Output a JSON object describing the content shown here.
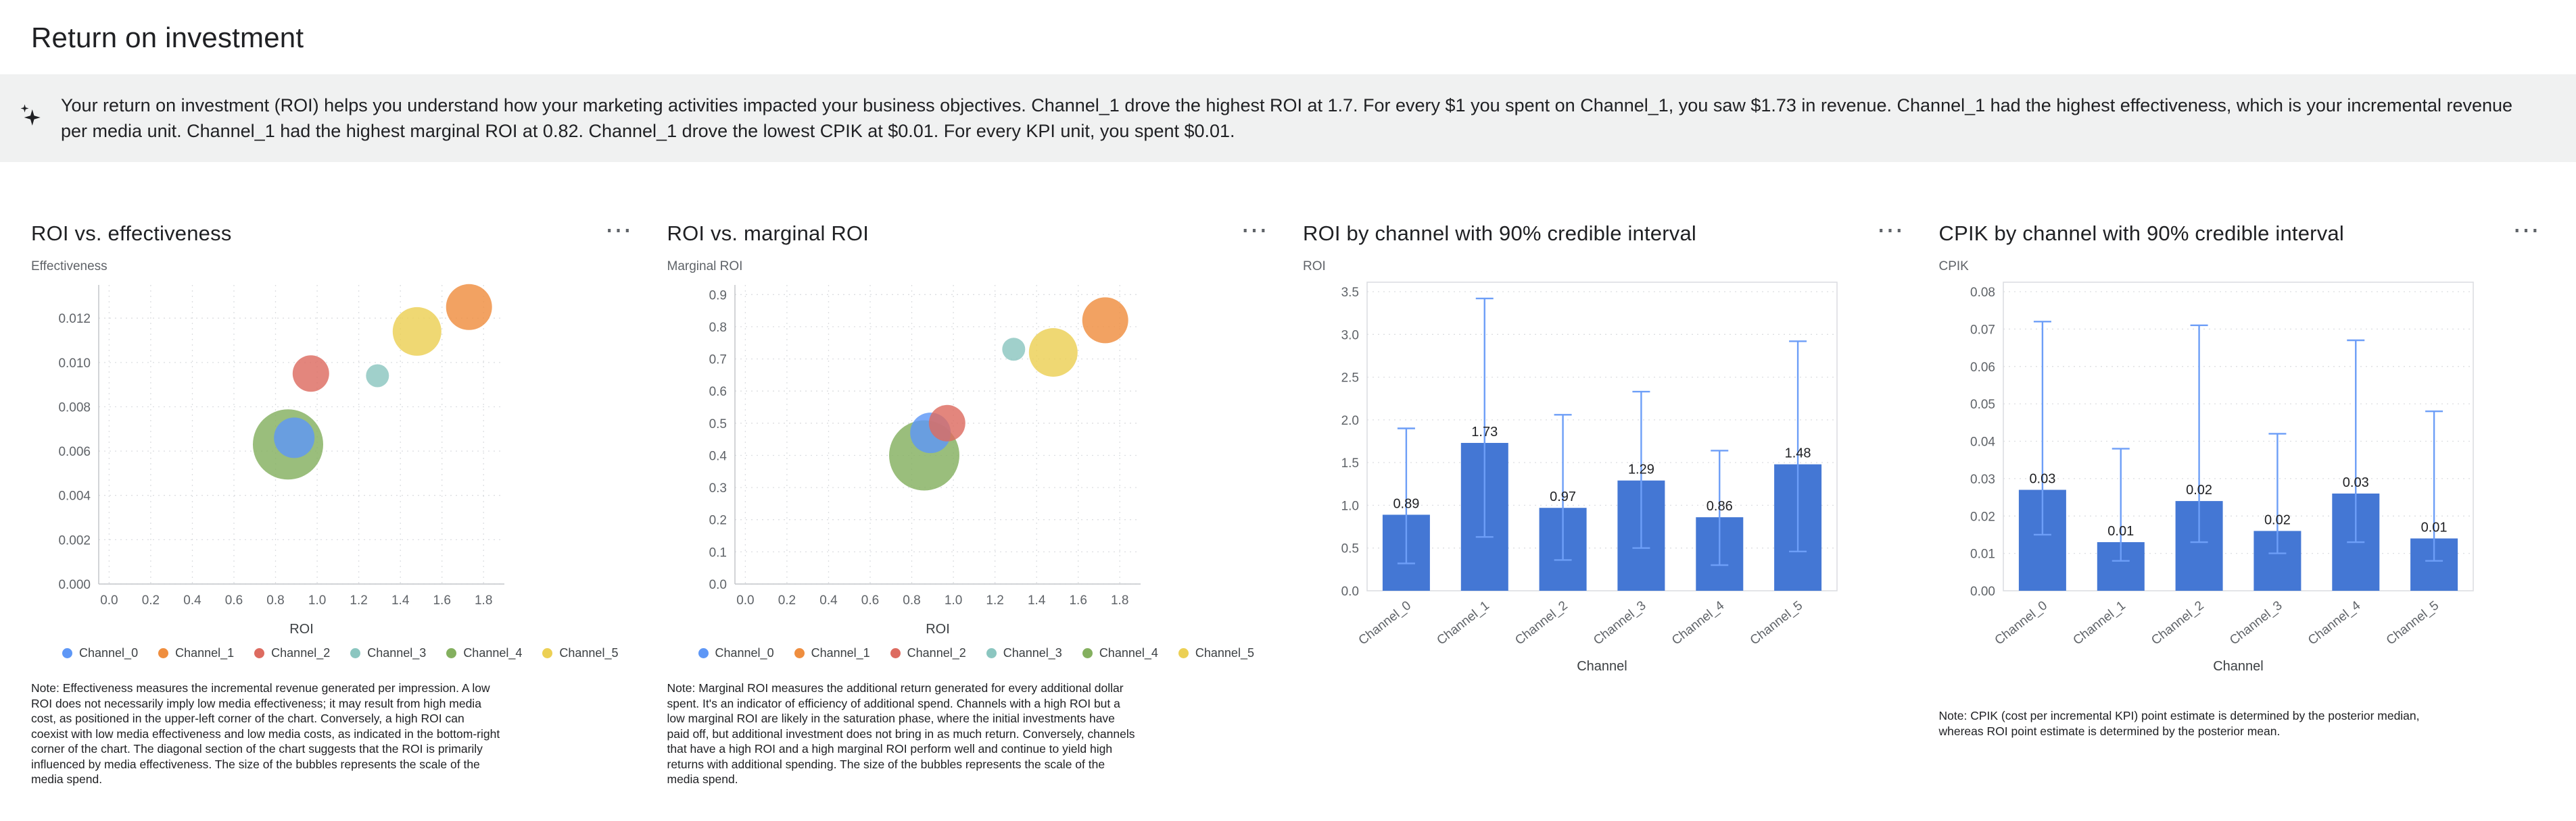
{
  "page": {
    "title": "Return on investment"
  },
  "icons": {
    "more_options": "⋯"
  },
  "insight_banner": {
    "text": "Your return on investment (ROI) helps you understand how your marketing activities impacted your business objectives. Channel_1 drove the highest ROI at 1.7. For every $1 you spent on Channel_1, you saw $1.73 in revenue. Channel_1 had the highest effectiveness, which is your incremental revenue per media unit. Channel_1 had the highest marginal ROI at 0.82. Channel_1 drove the lowest CPIK at $0.01. For every KPI unit, you spent $0.01."
  },
  "channels": [
    "Channel_0",
    "Channel_1",
    "Channel_2",
    "Channel_3",
    "Channel_4",
    "Channel_5"
  ],
  "colors": {
    "channel_palette": [
      "#5e97f6",
      "#ef8e3f",
      "#dd6b60",
      "#8bc6c0",
      "#84b05f",
      "#ecd054"
    ],
    "bar": "#4477d4",
    "ci": "#6d9ef7",
    "banner_bg": "#f0f1f1"
  },
  "chart_data": [
    {
      "type": "scatter",
      "title": "ROI vs. effectiveness",
      "xlabel": "ROI",
      "ylabel": "Effectiveness",
      "xlim": [
        -0.05,
        1.9
      ],
      "ylim": [
        0,
        0.0135
      ],
      "x_ticks": [
        0,
        0.2,
        0.4,
        0.6,
        0.8,
        1.0,
        1.2,
        1.4,
        1.6,
        1.8
      ],
      "x_tick_labels": [
        "0.0",
        "0.2",
        "0.4",
        "0.6",
        "0.8",
        "1.0",
        "1.2",
        "1.4",
        "1.6",
        "1.8"
      ],
      "y_ticks": [
        0,
        0.002,
        0.004,
        0.006,
        0.008,
        0.01,
        0.012
      ],
      "y_tick_labels": [
        "0.000",
        "0.002",
        "0.004",
        "0.006",
        "0.008",
        "0.010",
        "0.012"
      ],
      "series": [
        {
          "name": "Channel_0",
          "x": 0.89,
          "y": 0.0066,
          "size": 30
        },
        {
          "name": "Channel_1",
          "x": 1.73,
          "y": 0.0125,
          "size": 34
        },
        {
          "name": "Channel_2",
          "x": 0.97,
          "y": 0.0095,
          "size": 27
        },
        {
          "name": "Channel_3",
          "x": 1.29,
          "y": 0.0094,
          "size": 17
        },
        {
          "name": "Channel_4",
          "x": 0.86,
          "y": 0.0063,
          "size": 52
        },
        {
          "name": "Channel_5",
          "x": 1.48,
          "y": 0.0114,
          "size": 36
        }
      ],
      "note": "Note: Effectiveness measures the incremental revenue generated per impression. A low ROI does not necessarily imply low media effectiveness; it may result from high media cost, as positioned in the upper-left corner of the chart. Conversely, a high ROI can coexist with low media effectiveness and low media costs, as indicated in the bottom-right corner of the chart. The diagonal section of the chart suggests that the ROI is primarily influenced by media effectiveness. The size of the bubbles represents the scale of the media spend."
    },
    {
      "type": "scatter",
      "title": "ROI vs. marginal ROI",
      "xlabel": "ROI",
      "ylabel": "Marginal ROI",
      "xlim": [
        -0.05,
        1.9
      ],
      "ylim": [
        0,
        0.93
      ],
      "x_ticks": [
        0,
        0.2,
        0.4,
        0.6,
        0.8,
        1.0,
        1.2,
        1.4,
        1.6,
        1.8
      ],
      "x_tick_labels": [
        "0.0",
        "0.2",
        "0.4",
        "0.6",
        "0.8",
        "1.0",
        "1.2",
        "1.4",
        "1.6",
        "1.8"
      ],
      "y_ticks": [
        0,
        0.1,
        0.2,
        0.3,
        0.4,
        0.5,
        0.6,
        0.7,
        0.8,
        0.9
      ],
      "y_tick_labels": [
        "0.0",
        "0.1",
        "0.2",
        "0.3",
        "0.4",
        "0.5",
        "0.6",
        "0.7",
        "0.8",
        "0.9"
      ],
      "series": [
        {
          "name": "Channel_0",
          "x": 0.89,
          "y": 0.47,
          "size": 30
        },
        {
          "name": "Channel_1",
          "x": 1.73,
          "y": 0.82,
          "size": 34
        },
        {
          "name": "Channel_2",
          "x": 0.97,
          "y": 0.5,
          "size": 27
        },
        {
          "name": "Channel_3",
          "x": 1.29,
          "y": 0.73,
          "size": 17
        },
        {
          "name": "Channel_4",
          "x": 0.86,
          "y": 0.4,
          "size": 52
        },
        {
          "name": "Channel_5",
          "x": 1.48,
          "y": 0.72,
          "size": 36
        }
      ],
      "note": "Note: Marginal ROI measures the additional return generated for every additional dollar spent. It's an indicator of efficiency of additional spend. Channels with a high ROI but a low marginal ROI are likely in the saturation phase, where the initial investments have paid off, but additional investment does not bring in as much return. Conversely, channels that have a high ROI and a high marginal ROI perform well and continue to yield high returns with additional spending. The size of the bubbles represents the scale of the media spend."
    },
    {
      "type": "bar",
      "title": "ROI by channel with 90% credible interval",
      "xlabel": "Channel",
      "ylabel": "ROI",
      "categories": [
        "Channel_0",
        "Channel_1",
        "Channel_2",
        "Channel_3",
        "Channel_4",
        "Channel_5"
      ],
      "values": [
        0.89,
        1.73,
        0.97,
        1.29,
        0.86,
        1.48
      ],
      "labels": [
        "0.89",
        "1.73",
        "0.97",
        "1.29",
        "0.86",
        "1.48"
      ],
      "ci_low": [
        0.32,
        0.63,
        0.36,
        0.5,
        0.3,
        0.46
      ],
      "ci_high": [
        1.9,
        3.42,
        2.06,
        2.33,
        1.64,
        2.92
      ],
      "ylim": [
        0,
        3.5
      ],
      "y_ticks": [
        0,
        0.5,
        1,
        1.5,
        2,
        2.5,
        3,
        3.5
      ],
      "y_tick_labels": [
        "0.0",
        "0.5",
        "1.0",
        "1.5",
        "2.0",
        "2.5",
        "3.0",
        "3.5"
      ]
    },
    {
      "type": "bar",
      "title": "CPIK by channel with 90% credible interval",
      "xlabel": "Channel",
      "ylabel": "CPIK",
      "categories": [
        "Channel_0",
        "Channel_1",
        "Channel_2",
        "Channel_3",
        "Channel_4",
        "Channel_5"
      ],
      "values": [
        0.027,
        0.013,
        0.024,
        0.016,
        0.026,
        0.014
      ],
      "labels": [
        "0.03",
        "0.01",
        "0.02",
        "0.02",
        "0.03",
        "0.01"
      ],
      "ci_low": [
        0.015,
        0.008,
        0.013,
        0.01,
        0.013,
        0.008
      ],
      "ci_high": [
        0.072,
        0.038,
        0.071,
        0.042,
        0.067,
        0.048
      ],
      "ylim": [
        0,
        0.08
      ],
      "y_ticks": [
        0,
        0.01,
        0.02,
        0.03,
        0.04,
        0.05,
        0.06,
        0.07,
        0.08
      ],
      "y_tick_labels": [
        "0.00",
        "0.01",
        "0.02",
        "0.03",
        "0.04",
        "0.05",
        "0.06",
        "0.07",
        "0.08"
      ],
      "note": "Note: CPIK (cost per incremental KPI) point estimate is determined by the posterior median, whereas ROI point estimate is determined by the posterior mean."
    }
  ]
}
